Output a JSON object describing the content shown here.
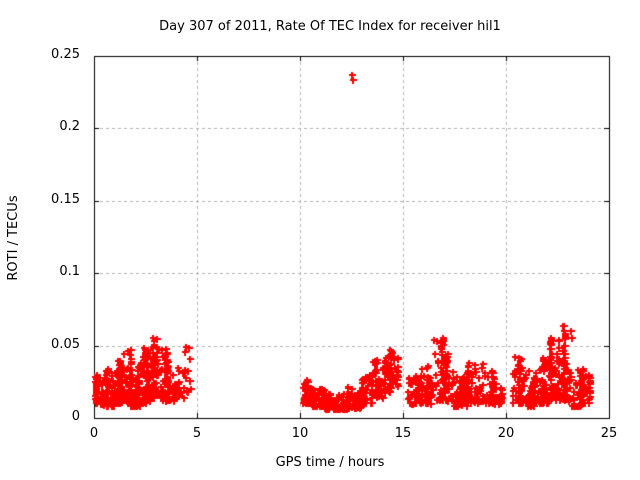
{
  "chart_data": {
    "type": "scatter",
    "title": "Day 307 of 2011, Rate Of TEC Index for receiver hil1",
    "xlabel": "GPS time / hours",
    "ylabel": "ROTI / TECUs",
    "xlim": [
      0,
      25
    ],
    "ylim": [
      0,
      0.25
    ],
    "xtick_values": [
      0,
      5,
      10,
      15,
      20,
      25
    ],
    "xtick_labels": [
      "0",
      "5",
      "10",
      "15",
      "20",
      "25"
    ],
    "ytick_values": [
      0,
      0.05,
      0.1,
      0.15,
      0.2,
      0.25
    ],
    "ytick_labels": [
      "0",
      "0.05",
      "0.1",
      "0.15",
      "0.2",
      "0.25"
    ],
    "grid": true,
    "legend": "none",
    "marker": "plus",
    "colors": {
      "marker": "#ff0000",
      "grid": "#b3b3b3",
      "border": "#000000",
      "text": "#000000",
      "background": "#ffffff"
    },
    "outlier_points": [
      [
        12.52,
        0.237
      ],
      [
        12.58,
        0.2335
      ]
    ],
    "point_clusters": [
      {
        "t0": 0.0,
        "t1": 0.45,
        "n": 55,
        "ymin": 0.01,
        "ymax": 0.03,
        "bias": 2.0
      },
      {
        "t0": 0.45,
        "t1": 1.1,
        "n": 70,
        "ymin": 0.008,
        "ymax": 0.034,
        "bias": 2.2
      },
      {
        "t0": 1.1,
        "t1": 1.45,
        "n": 45,
        "ymin": 0.01,
        "ymax": 0.042,
        "bias": 1.8
      },
      {
        "t0": 1.45,
        "t1": 1.8,
        "n": 45,
        "ymin": 0.01,
        "ymax": 0.047,
        "bias": 1.8
      },
      {
        "t0": 1.8,
        "t1": 2.25,
        "n": 50,
        "ymin": 0.008,
        "ymax": 0.036,
        "bias": 2.0
      },
      {
        "t0": 2.25,
        "t1": 2.7,
        "n": 55,
        "ymin": 0.01,
        "ymax": 0.05,
        "bias": 1.7
      },
      {
        "t0": 2.7,
        "t1": 3.1,
        "n": 55,
        "ymin": 0.012,
        "ymax": 0.056,
        "bias": 1.6
      },
      {
        "t0": 3.1,
        "t1": 3.55,
        "n": 45,
        "ymin": 0.012,
        "ymax": 0.048,
        "bias": 1.8
      },
      {
        "t0": 3.55,
        "t1": 4.0,
        "n": 40,
        "ymin": 0.012,
        "ymax": 0.04,
        "bias": 1.9
      },
      {
        "t0": 4.05,
        "t1": 4.4,
        "n": 16,
        "ymin": 0.014,
        "ymax": 0.035,
        "bias": 1.5
      },
      {
        "t0": 4.4,
        "t1": 4.7,
        "n": 14,
        "ymin": 0.018,
        "ymax": 0.052,
        "bias": 1.1
      },
      {
        "t0": 10.15,
        "t1": 10.6,
        "n": 40,
        "ymin": 0.01,
        "ymax": 0.028,
        "bias": 2.0
      },
      {
        "t0": 10.6,
        "t1": 11.2,
        "n": 50,
        "ymin": 0.008,
        "ymax": 0.022,
        "bias": 2.0
      },
      {
        "t0": 11.2,
        "t1": 12.3,
        "n": 80,
        "ymin": 0.006,
        "ymax": 0.017,
        "bias": 2.0
      },
      {
        "t0": 12.3,
        "t1": 13.0,
        "n": 55,
        "ymin": 0.007,
        "ymax": 0.022,
        "bias": 2.0
      },
      {
        "t0": 13.0,
        "t1": 13.55,
        "n": 45,
        "ymin": 0.01,
        "ymax": 0.03,
        "bias": 1.8
      },
      {
        "t0": 13.55,
        "t1": 14.05,
        "n": 42,
        "ymin": 0.014,
        "ymax": 0.04,
        "bias": 1.6
      },
      {
        "t0": 14.05,
        "t1": 14.55,
        "n": 45,
        "ymin": 0.018,
        "ymax": 0.048,
        "bias": 1.4
      },
      {
        "t0": 14.55,
        "t1": 14.78,
        "n": 14,
        "ymin": 0.022,
        "ymax": 0.042,
        "bias": 1.4
      },
      {
        "t0": 15.2,
        "t1": 15.9,
        "n": 50,
        "ymin": 0.01,
        "ymax": 0.03,
        "bias": 2.0
      },
      {
        "t0": 15.9,
        "t1": 16.4,
        "n": 45,
        "ymin": 0.01,
        "ymax": 0.036,
        "bias": 1.9
      },
      {
        "t0": 16.4,
        "t1": 16.95,
        "n": 55,
        "ymin": 0.012,
        "ymax": 0.056,
        "bias": 1.5
      },
      {
        "t0": 16.95,
        "t1": 17.45,
        "n": 48,
        "ymin": 0.012,
        "ymax": 0.046,
        "bias": 1.7
      },
      {
        "t0": 17.45,
        "t1": 18.1,
        "n": 48,
        "ymin": 0.008,
        "ymax": 0.03,
        "bias": 2.0
      },
      {
        "t0": 18.1,
        "t1": 18.9,
        "n": 58,
        "ymin": 0.01,
        "ymax": 0.038,
        "bias": 1.9
      },
      {
        "t0": 18.9,
        "t1": 19.5,
        "n": 46,
        "ymin": 0.01,
        "ymax": 0.033,
        "bias": 1.9
      },
      {
        "t0": 19.5,
        "t1": 19.8,
        "n": 18,
        "ymin": 0.01,
        "ymax": 0.026,
        "bias": 2.0
      },
      {
        "t0": 20.3,
        "t1": 20.95,
        "n": 52,
        "ymin": 0.01,
        "ymax": 0.043,
        "bias": 1.7
      },
      {
        "t0": 20.95,
        "t1": 21.6,
        "n": 55,
        "ymin": 0.008,
        "ymax": 0.033,
        "bias": 2.0
      },
      {
        "t0": 21.6,
        "t1": 22.1,
        "n": 55,
        "ymin": 0.01,
        "ymax": 0.042,
        "bias": 1.7
      },
      {
        "t0": 22.1,
        "t1": 22.6,
        "n": 62,
        "ymin": 0.012,
        "ymax": 0.056,
        "bias": 1.5
      },
      {
        "t0": 22.6,
        "t1": 23.2,
        "n": 68,
        "ymin": 0.012,
        "ymax": 0.064,
        "bias": 1.5
      },
      {
        "t0": 23.2,
        "t1": 23.75,
        "n": 48,
        "ymin": 0.008,
        "ymax": 0.036,
        "bias": 1.9
      },
      {
        "t0": 23.75,
        "t1": 24.1,
        "n": 22,
        "ymin": 0.01,
        "ymax": 0.03,
        "bias": 1.3
      }
    ],
    "seed": 3072011
  }
}
